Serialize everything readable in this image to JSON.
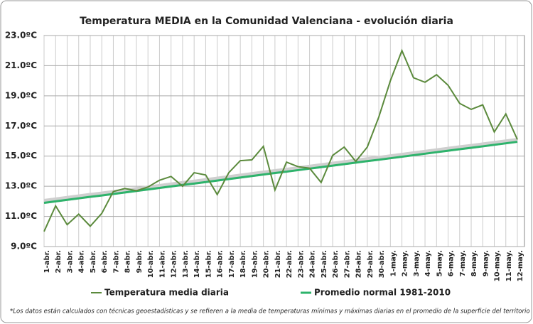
{
  "chart_data": {
    "type": "line",
    "title": "Temperatura MEDIA en la Comunidad Valenciana - evolución diaria",
    "footnote": "*Los datos están calculados con técnicas geoestadísticas y se refieren a la media de temperaturas mínimas y máximas diarias en el promedio de la superficie del territorio",
    "categories": [
      "1-abr.",
      "2-abr.",
      "3-abr.",
      "4-abr.",
      "5-abr.",
      "6-abr.",
      "7-abr.",
      "8-abr.",
      "9-abr.",
      "10-abr.",
      "11-abr.",
      "12-abr.",
      "13-abr.",
      "14-abr.",
      "15-abr.",
      "16-abr.",
      "17-abr.",
      "18-abr.",
      "19-abr.",
      "20-abr.",
      "21-abr.",
      "22-abr.",
      "23-abr.",
      "24-abr.",
      "25-abr.",
      "26-abr.",
      "27-abr.",
      "28-abr.",
      "29-abr.",
      "30-abr.",
      "1-may.",
      "2-may.",
      "3-may.",
      "4-may.",
      "5-may.",
      "6-may.",
      "7-may.",
      "8-may.",
      "9-may.",
      "10-may.",
      "11-may.",
      "12-may."
    ],
    "series": [
      {
        "name": "Temperatura media diaria",
        "color": "#5b8a3c",
        "values": [
          10.0,
          11.7,
          10.45,
          11.15,
          10.35,
          11.2,
          12.65,
          12.85,
          12.7,
          12.95,
          13.4,
          13.65,
          13.0,
          13.9,
          13.75,
          12.45,
          13.9,
          14.7,
          14.75,
          15.65,
          12.75,
          14.6,
          14.3,
          14.2,
          13.25,
          15.05,
          15.6,
          14.65,
          15.6,
          17.6,
          20.0,
          22.0,
          20.2,
          19.9,
          20.4,
          19.7,
          18.5,
          18.1,
          18.4,
          16.6,
          17.8,
          16.1
        ]
      },
      {
        "name": "Promedio normal 1981-2010",
        "color": "#2db36b",
        "values": [
          11.9,
          12.0,
          12.1,
          12.2,
          12.3,
          12.39,
          12.49,
          12.59,
          12.69,
          12.79,
          12.89,
          12.99,
          13.09,
          13.18,
          13.28,
          13.38,
          13.48,
          13.58,
          13.68,
          13.78,
          13.88,
          13.97,
          14.07,
          14.17,
          14.27,
          14.37,
          14.47,
          14.57,
          14.67,
          14.76,
          14.86,
          14.96,
          15.06,
          15.16,
          15.26,
          15.36,
          15.46,
          15.55,
          15.65,
          15.75,
          15.85,
          15.95
        ]
      }
    ],
    "ylim": [
      9,
      23
    ],
    "yticks": [
      {
        "value": 9,
        "label": "9.0ºC"
      },
      {
        "value": 11,
        "label": "11.0ºC"
      },
      {
        "value": 13,
        "label": "13.0ºC"
      },
      {
        "value": 15,
        "label": "15.0ºC"
      },
      {
        "value": 17,
        "label": "17.0ºC"
      },
      {
        "value": 19,
        "label": "19.0ºC"
      },
      {
        "value": 21,
        "label": "21.0ºC"
      },
      {
        "value": 23,
        "label": "23.0ºC"
      }
    ],
    "grid": true,
    "legend": "bottom"
  }
}
